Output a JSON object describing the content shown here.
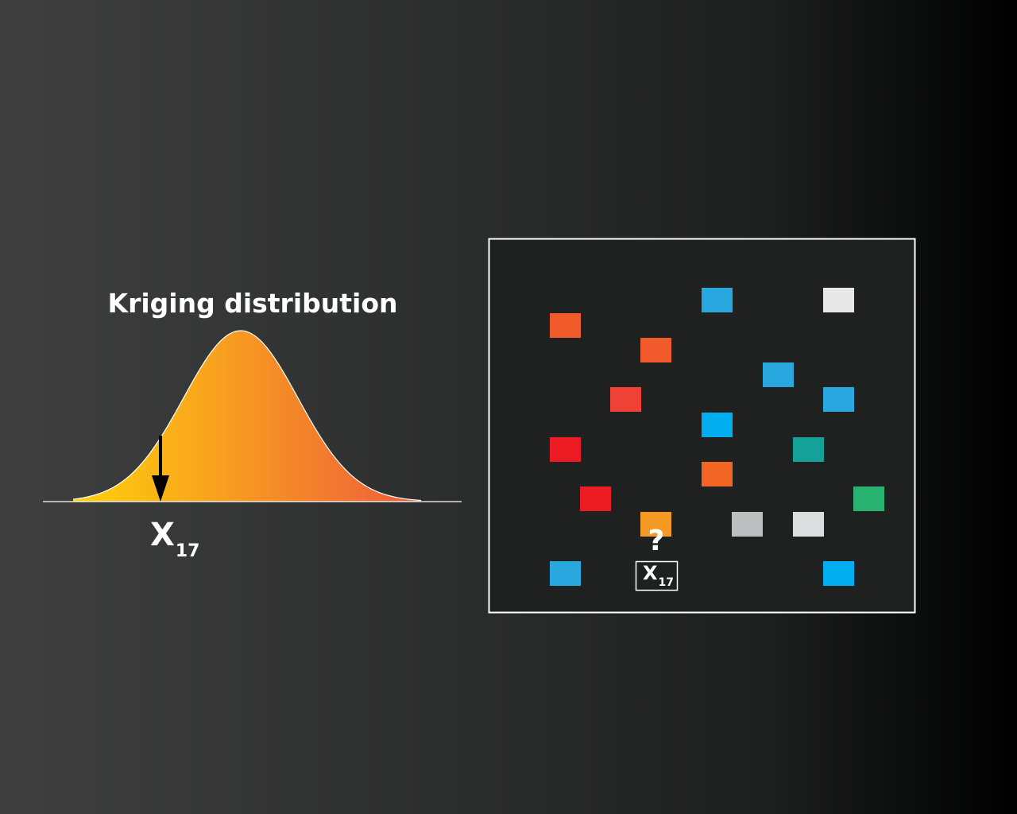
{
  "distribution": {
    "title": "Kriging distribution",
    "variable": "X",
    "subscript": "17",
    "gradient_start": "#ffd20a",
    "gradient_end": "#ee5a3c",
    "outline_color": "#ffffff",
    "arrow_color": "#000000"
  },
  "field": {
    "border_color": "#ffffff",
    "background": "#1f2020",
    "unknown": {
      "symbol": "?",
      "color": "#f59a23",
      "label_main": "X",
      "label_sub": "17"
    },
    "samples": [
      {
        "color": "#29a8e0"
      },
      {
        "color": "#e8e8e8"
      },
      {
        "color": "#f15a2b"
      },
      {
        "color": "#f15a2b"
      },
      {
        "color": "#29a8e0"
      },
      {
        "color": "#ef4136"
      },
      {
        "color": "#29a8e0"
      },
      {
        "color": "#00aeef"
      },
      {
        "color": "#ed1c24"
      },
      {
        "color": "#14a19a"
      },
      {
        "color": "#f26522"
      },
      {
        "color": "#ed1c24"
      },
      {
        "color": "#27b36f"
      },
      {
        "color": "#bcbec0"
      },
      {
        "color": "#dcddde"
      },
      {
        "color": "#29a8e0"
      },
      {
        "color": "#00aeef"
      }
    ]
  }
}
